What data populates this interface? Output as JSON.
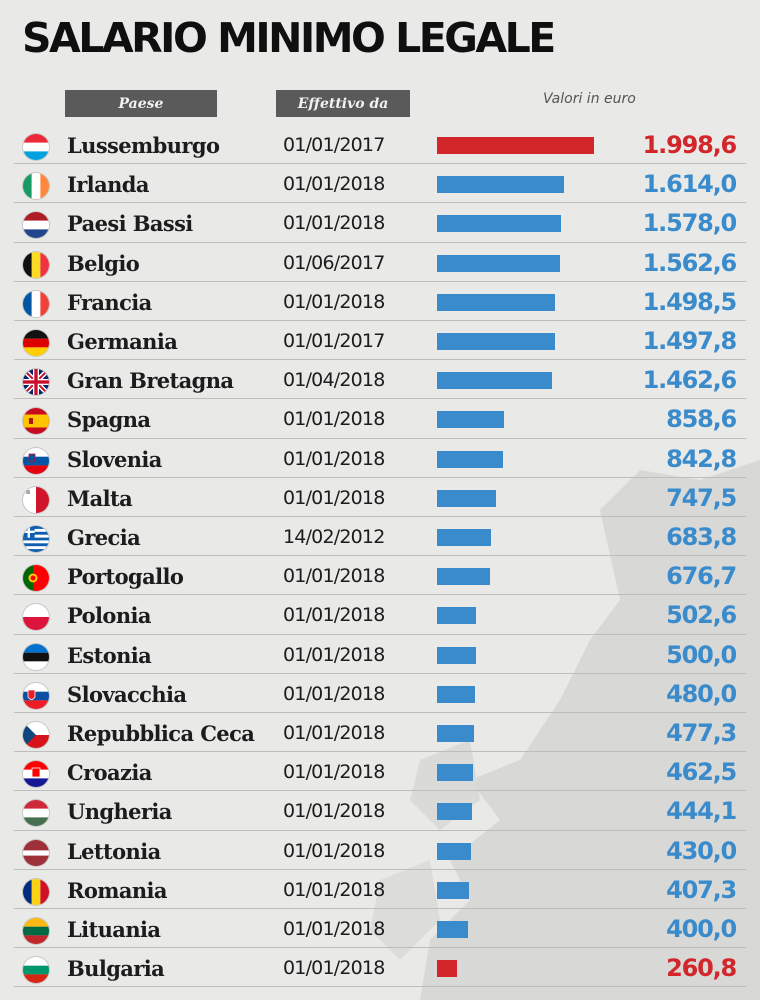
{
  "title": "SALARIO MINIMO LEGALE",
  "headers": {
    "country": "Paese",
    "date": "Effettivo da",
    "unit": "Valori in euro"
  },
  "colors": {
    "highlight": "#d3262b",
    "normal": "#3a8bcc",
    "background": "#e9e9e7"
  },
  "chart_data": {
    "type": "bar",
    "orientation": "horizontal",
    "title": "SALARIO MINIMO LEGALE",
    "xlim": [
      0,
      1998.6
    ],
    "categories": [
      "Lussemburgo",
      "Irlanda",
      "Paesi Bassi",
      "Belgio",
      "Francia",
      "Germania",
      "Gran Bretagna",
      "Spagna",
      "Slovenia",
      "Malta",
      "Grecia",
      "Portogallo",
      "Polonia",
      "Estonia",
      "Slovacchia",
      "Repubblica Ceca",
      "Croazia",
      "Ungheria",
      "Lettonia",
      "Romania",
      "Lituania",
      "Bulgaria"
    ],
    "values": [
      1998.6,
      1614.0,
      1578.0,
      1562.6,
      1498.5,
      1497.8,
      1462.6,
      858.6,
      842.8,
      747.5,
      683.8,
      676.7,
      502.6,
      500.0,
      480.0,
      477.3,
      462.5,
      444.1,
      430.0,
      407.3,
      400.0,
      260.8
    ],
    "rows": [
      {
        "country": "Lussemburgo",
        "date": "01/01/2017",
        "value": 1998.6,
        "label": "1.998,6",
        "highlight": true,
        "flag": "luxembourg-flag-icon"
      },
      {
        "country": "Irlanda",
        "date": "01/01/2018",
        "value": 1614.0,
        "label": "1.614,0",
        "highlight": false,
        "flag": "ireland-flag-icon"
      },
      {
        "country": "Paesi Bassi",
        "date": "01/01/2018",
        "value": 1578.0,
        "label": "1.578,0",
        "highlight": false,
        "flag": "netherlands-flag-icon"
      },
      {
        "country": "Belgio",
        "date": "01/06/2017",
        "value": 1562.6,
        "label": "1.562,6",
        "highlight": false,
        "flag": "belgium-flag-icon"
      },
      {
        "country": "Francia",
        "date": "01/01/2018",
        "value": 1498.5,
        "label": "1.498,5",
        "highlight": false,
        "flag": "france-flag-icon"
      },
      {
        "country": "Germania",
        "date": "01/01/2017",
        "value": 1497.8,
        "label": "1.497,8",
        "highlight": false,
        "flag": "germany-flag-icon"
      },
      {
        "country": "Gran Bretagna",
        "date": "01/04/2018",
        "value": 1462.6,
        "label": "1.462,6",
        "highlight": false,
        "flag": "uk-flag-icon"
      },
      {
        "country": "Spagna",
        "date": "01/01/2018",
        "value": 858.6,
        "label": "858,6",
        "highlight": false,
        "flag": "spain-flag-icon"
      },
      {
        "country": "Slovenia",
        "date": "01/01/2018",
        "value": 842.8,
        "label": "842,8",
        "highlight": false,
        "flag": "slovenia-flag-icon"
      },
      {
        "country": "Malta",
        "date": "01/01/2018",
        "value": 747.5,
        "label": "747,5",
        "highlight": false,
        "flag": "malta-flag-icon"
      },
      {
        "country": "Grecia",
        "date": "14/02/2012",
        "value": 683.8,
        "label": "683,8",
        "highlight": false,
        "flag": "greece-flag-icon"
      },
      {
        "country": "Portogallo",
        "date": "01/01/2018",
        "value": 676.7,
        "label": "676,7",
        "highlight": false,
        "flag": "portugal-flag-icon"
      },
      {
        "country": "Polonia",
        "date": "01/01/2018",
        "value": 502.6,
        "label": "502,6",
        "highlight": false,
        "flag": "poland-flag-icon"
      },
      {
        "country": "Estonia",
        "date": "01/01/2018",
        "value": 500.0,
        "label": "500,0",
        "highlight": false,
        "flag": "estonia-flag-icon"
      },
      {
        "country": "Slovacchia",
        "date": "01/01/2018",
        "value": 480.0,
        "label": "480,0",
        "highlight": false,
        "flag": "slovakia-flag-icon"
      },
      {
        "country": "Repubblica Ceca",
        "date": "01/01/2018",
        "value": 477.3,
        "label": "477,3",
        "highlight": false,
        "flag": "czech-flag-icon"
      },
      {
        "country": "Croazia",
        "date": "01/01/2018",
        "value": 462.5,
        "label": "462,5",
        "highlight": false,
        "flag": "croatia-flag-icon"
      },
      {
        "country": "Ungheria",
        "date": "01/01/2018",
        "value": 444.1,
        "label": "444,1",
        "highlight": false,
        "flag": "hungary-flag-icon"
      },
      {
        "country": "Lettonia",
        "date": "01/01/2018",
        "value": 430.0,
        "label": "430,0",
        "highlight": false,
        "flag": "latvia-flag-icon"
      },
      {
        "country": "Romania",
        "date": "01/01/2018",
        "value": 407.3,
        "label": "407,3",
        "highlight": false,
        "flag": "romania-flag-icon"
      },
      {
        "country": "Lituania",
        "date": "01/01/2018",
        "value": 400.0,
        "label": "400,0",
        "highlight": false,
        "flag": "lithuania-flag-icon"
      },
      {
        "country": "Bulgaria",
        "date": "01/01/2018",
        "value": 260.8,
        "label": "260,8",
        "highlight": true,
        "flag": "bulgaria-flag-icon"
      }
    ]
  }
}
